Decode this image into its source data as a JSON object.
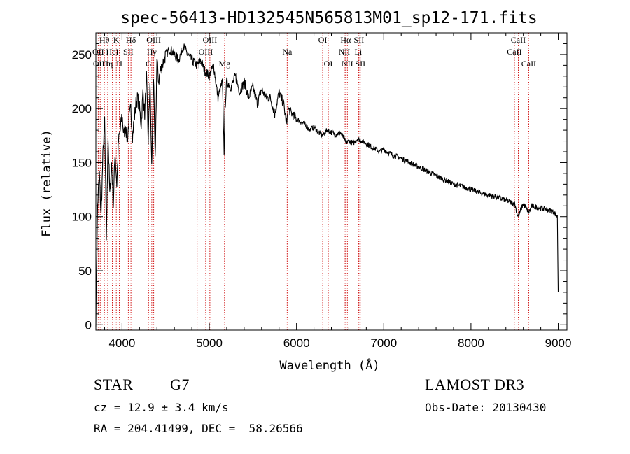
{
  "chart_data": {
    "type": "line",
    "title": "spec-56413-HD132545N565813M01_sp12-171.fits",
    "xlabel": "Wavelength (Å)",
    "ylabel": "Flux (relative)",
    "xlim": [
      3700,
      9100
    ],
    "ylim": [
      -5,
      270
    ],
    "xticks": [
      4000,
      5000,
      6000,
      7000,
      8000,
      9000
    ],
    "yticks": [
      0,
      50,
      100,
      150,
      200,
      250
    ],
    "series": [
      {
        "name": "spectrum",
        "x": [
          3700,
          3720,
          3740,
          3760,
          3780,
          3800,
          3820,
          3840,
          3860,
          3880,
          3900,
          3920,
          3940,
          3960,
          3980,
          4000,
          4020,
          4040,
          4060,
          4080,
          4100,
          4120,
          4140,
          4160,
          4180,
          4200,
          4220,
          4240,
          4260,
          4280,
          4300,
          4320,
          4340,
          4360,
          4380,
          4400,
          4420,
          4440,
          4460,
          4480,
          4500,
          4550,
          4600,
          4650,
          4700,
          4750,
          4800,
          4860,
          4900,
          4950,
          5000,
          5050,
          5100,
          5150,
          5170,
          5180,
          5200,
          5250,
          5300,
          5350,
          5400,
          5450,
          5500,
          5550,
          5600,
          5650,
          5700,
          5750,
          5800,
          5850,
          5890,
          5900,
          5950,
          6000,
          6050,
          6100,
          6150,
          6200,
          6250,
          6300,
          6350,
          6400,
          6450,
          6500,
          6550,
          6562,
          6600,
          6650,
          6700,
          6750,
          6800,
          6850,
          6900,
          6950,
          7000,
          7100,
          7200,
          7300,
          7400,
          7500,
          7600,
          7700,
          7800,
          7900,
          8000,
          8100,
          8200,
          8300,
          8400,
          8500,
          8540,
          8600,
          8662,
          8700,
          8800,
          8900,
          8950,
          8990,
          9000
        ],
        "y": [
          5,
          110,
          140,
          100,
          155,
          190,
          80,
          175,
          120,
          150,
          110,
          160,
          130,
          170,
          180,
          195,
          175,
          185,
          170,
          190,
          200,
          175,
          190,
          205,
          210,
          200,
          185,
          215,
          195,
          230,
          170,
          225,
          145,
          230,
          150,
          245,
          225,
          235,
          240,
          245,
          250,
          255,
          250,
          245,
          258,
          250,
          245,
          240,
          245,
          235,
          230,
          240,
          210,
          225,
          160,
          200,
          225,
          220,
          230,
          215,
          225,
          210,
          220,
          205,
          218,
          210,
          210,
          195,
          215,
          205,
          185,
          200,
          195,
          190,
          188,
          185,
          180,
          183,
          178,
          175,
          180,
          178,
          176,
          178,
          172,
          168,
          170,
          168,
          172,
          170,
          168,
          165,
          163,
          160,
          162,
          157,
          154,
          150,
          146,
          142,
          138,
          134,
          130,
          128,
          125,
          122,
          120,
          118,
          115,
          112,
          100,
          112,
          104,
          110,
          108,
          106,
          104,
          100,
          30
        ]
      }
    ],
    "lines": [
      {
        "wl": 3727,
        "label": "OII",
        "row": 1
      },
      {
        "wl": 3750,
        "label": "OIII",
        "row": 2
      },
      {
        "wl": 3798,
        "label": "Hθ",
        "row": 0
      },
      {
        "wl": 3835,
        "label": "Hη",
        "row": 2
      },
      {
        "wl": 3889,
        "label": "HeI",
        "row": 1
      },
      {
        "wl": 3934,
        "label": "K",
        "row": 0
      },
      {
        "wl": 3969,
        "label": "H",
        "row": 2
      },
      {
        "wl": 4072,
        "label": "SII",
        "row": 1
      },
      {
        "wl": 4102,
        "label": "Hδ",
        "row": 0
      },
      {
        "wl": 4304,
        "label": "G",
        "row": 2
      },
      {
        "wl": 4341,
        "label": "Hγ",
        "row": 1
      },
      {
        "wl": 4363,
        "label": "OIII",
        "row": 0
      },
      {
        "wl": 4861,
        "label": "Hβ",
        "row": 2
      },
      {
        "wl": 4959,
        "label": "OIII",
        "row": 1
      },
      {
        "wl": 5007,
        "label": "OIII",
        "row": 0
      },
      {
        "wl": 5175,
        "label": "Mg",
        "row": 2
      },
      {
        "wl": 5893,
        "label": "Na",
        "row": 1
      },
      {
        "wl": 6300,
        "label": "OI",
        "row": 0
      },
      {
        "wl": 6364,
        "label": "OI",
        "row": 2
      },
      {
        "wl": 6548,
        "label": "NII",
        "row": 1
      },
      {
        "wl": 6563,
        "label": "Hα",
        "row": 0
      },
      {
        "wl": 6583,
        "label": "NII",
        "row": 2
      },
      {
        "wl": 6708,
        "label": "Li",
        "row": 1
      },
      {
        "wl": 6716,
        "label": "SII",
        "row": 0
      },
      {
        "wl": 6731,
        "label": "SII",
        "row": 2
      },
      {
        "wl": 8498,
        "label": "CaII",
        "row": 1
      },
      {
        "wl": 8542,
        "label": "CaII",
        "row": 0
      },
      {
        "wl": 8662,
        "label": "CaII",
        "row": 2
      }
    ]
  },
  "info": {
    "object_class": "STAR",
    "subclass": "G7",
    "survey": "LAMOST DR3",
    "cz": "cz = 12.9 ± 3.4 km/s",
    "obs_date": "Obs-Date: 20130430",
    "coords": "RA = 204.41499, DEC =  58.26566"
  },
  "colors": {
    "spectrum": "#000000",
    "line_marker": "#cc0000",
    "background": "#ffffff"
  }
}
